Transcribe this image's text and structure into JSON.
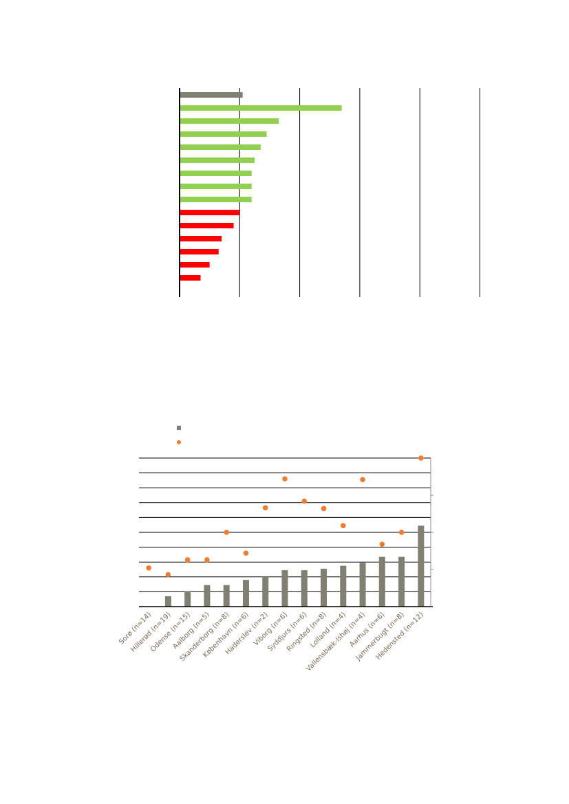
{
  "chart_data": [
    {
      "type": "bar",
      "orientation": "horizontal",
      "xlim": [
        0,
        5
      ],
      "grid": true,
      "colors": [
        "#7f7f72",
        "#92d050",
        "#92d050",
        "#92d050",
        "#92d050",
        "#92d050",
        "#92d050",
        "#92d050",
        "#92d050",
        "#ff0000",
        "#ff0000",
        "#ff0000",
        "#ff0000",
        "#ff0000",
        "#ff0000"
      ],
      "values": [
        1.05,
        2.7,
        1.65,
        1.45,
        1.35,
        1.25,
        1.2,
        1.2,
        1.2,
        1.0,
        0.9,
        0.7,
        0.65,
        0.5,
        0.35
      ]
    },
    {
      "type": "bar",
      "categories": [
        "Sorø  (n=14)",
        "Hillerød (n=19)",
        "Odense (n=15)",
        "Aalborg   (n=5)",
        "Skanderborg (n=8)",
        "København (n=6)",
        "Haderslev (n=2)",
        "Viborg (n=6)",
        "Syddjurs (n=6)",
        "Ringsted  (n=8)",
        "Lolland (n=4)",
        "Vallensbæk-Ishøj (n=4)",
        "Aarhus (n=6)",
        "Jammerbugt (n=8)",
        "Hedensted (n=12)"
      ],
      "series": [
        {
          "kind": "bar",
          "color": "#7f7f72",
          "values": [
            0,
            0.7,
            1.05,
            1.45,
            1.45,
            1.8,
            2.0,
            2.45,
            2.45,
            2.55,
            2.75,
            2.95,
            3.35,
            3.35,
            5.45
          ]
        },
        {
          "kind": "dot",
          "color": "#ed7d31",
          "values": [
            2.6,
            2.15,
            3.15,
            3.15,
            5.0,
            3.6,
            6.65,
            8.6,
            7.1,
            6.6,
            5.45,
            8.55,
            4.2,
            5.0,
            10.0
          ]
        }
      ],
      "ylim": [
        0,
        10
      ],
      "grid": true,
      "legend_position": "top-left"
    }
  ]
}
